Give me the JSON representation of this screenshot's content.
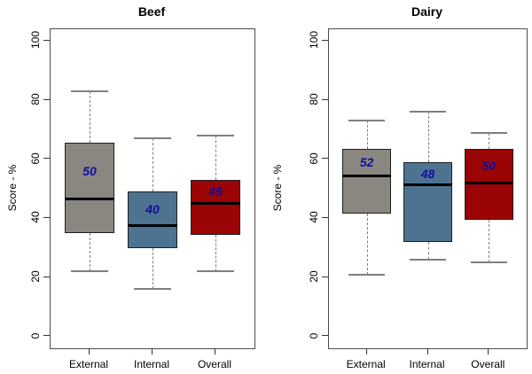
{
  "figure": {
    "background": "#ffffff",
    "label_color": "#0F0FA0",
    "whisker_color": "#7f7f7f",
    "box_border_color": "#1f1f1f"
  },
  "chart_data": [
    {
      "type": "boxplot",
      "title": "Beef",
      "ylabel": "Score - %",
      "ylim": [
        0,
        100
      ],
      "yticks": [
        "0",
        "20",
        "40",
        "60",
        "80",
        "100"
      ],
      "grid": false,
      "legend": "none",
      "categories": [
        "External",
        "Internal",
        "Overall"
      ],
      "boxes": [
        {
          "category": "External",
          "color": "#8A8780",
          "whisker_low": 22,
          "q1": 35,
          "median": 46.5,
          "q3": 65.5,
          "whisker_high": 83,
          "label": "50"
        },
        {
          "category": "Internal",
          "color": "#4E7390",
          "whisker_low": 16,
          "q1": 30,
          "median": 37.5,
          "q3": 49,
          "whisker_high": 67,
          "label": "40"
        },
        {
          "category": "Overall",
          "color": "#9B0404",
          "whisker_low": 22,
          "q1": 34.5,
          "median": 45,
          "q3": 53,
          "whisker_high": 68,
          "label": "45"
        }
      ]
    },
    {
      "type": "boxplot",
      "title": "Dairy",
      "ylabel": "Score - %",
      "ylim": [
        0,
        100
      ],
      "yticks": [
        "0",
        "20",
        "40",
        "60",
        "80",
        "100"
      ],
      "grid": false,
      "legend": "none",
      "categories": [
        "External",
        "Internal",
        "Overall"
      ],
      "boxes": [
        {
          "category": "External",
          "color": "#8A8780",
          "whisker_low": 21,
          "q1": 41.5,
          "median": 54.5,
          "q3": 63.5,
          "whisker_high": 73,
          "label": "52"
        },
        {
          "category": "Internal",
          "color": "#4E7390",
          "whisker_low": 26,
          "q1": 32,
          "median": 51.5,
          "q3": 59,
          "whisker_high": 76,
          "label": "48"
        },
        {
          "category": "Overall",
          "color": "#9B0404",
          "whisker_low": 25,
          "q1": 39.5,
          "median": 52,
          "q3": 63.5,
          "whisker_high": 69,
          "label": "50"
        }
      ]
    }
  ]
}
